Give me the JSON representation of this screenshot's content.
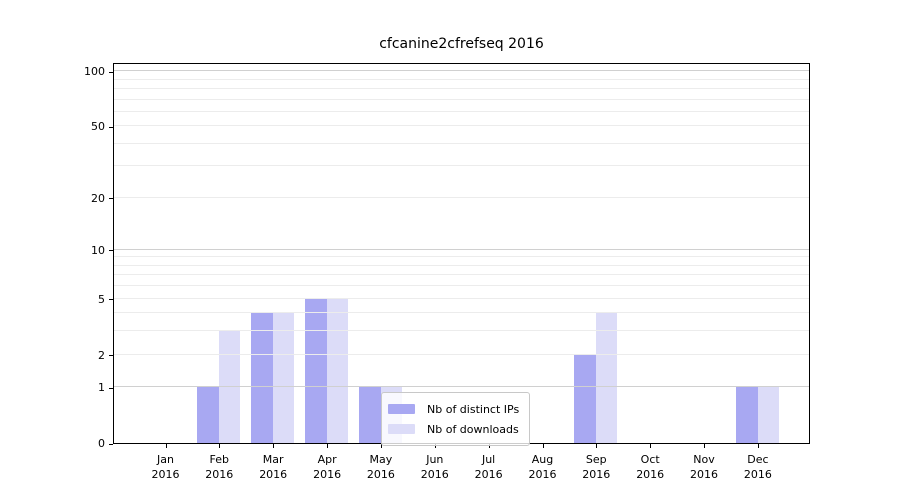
{
  "chart_data": {
    "type": "bar",
    "title": "cfcanine2cfrefseq 2016",
    "categories": [
      "Jan 2016",
      "Feb 2016",
      "Mar 2016",
      "Apr 2016",
      "May 2016",
      "Jun 2016",
      "Jul 2016",
      "Aug 2016",
      "Sep 2016",
      "Oct 2016",
      "Nov 2016",
      "Dec 2016"
    ],
    "series": [
      {
        "name": "Nb of distinct IPs",
        "color": "#a8a8f2",
        "values": [
          0,
          1,
          4,
          5,
          1,
          0,
          0,
          0,
          2,
          0,
          0,
          1
        ]
      },
      {
        "name": "Nb of downloads",
        "color": "#dcdcf8",
        "values": [
          0,
          3,
          4,
          5,
          1,
          0,
          0,
          0,
          4,
          0,
          0,
          1
        ]
      }
    ],
    "xlabel": "",
    "ylabel": "",
    "yscale": "log1p",
    "ylim": [
      0,
      112
    ],
    "ytick_values": [
      0,
      1,
      2,
      5,
      10,
      20,
      50,
      100
    ],
    "gridlines": {
      "major": [
        1,
        10,
        100
      ],
      "minor": [
        2,
        3,
        4,
        5,
        6,
        7,
        8,
        9,
        20,
        30,
        40,
        50,
        60,
        70,
        80,
        90
      ]
    },
    "legend": {
      "position": "lower center",
      "labels": [
        "Nb of distinct IPs",
        "Nb of downloads"
      ]
    },
    "colors": {
      "axis": "#000000",
      "background": "#ffffff",
      "grid_major": "#d0d0d0",
      "grid_minor": "#ececec",
      "legend_border": "#c8c8c8"
    }
  }
}
